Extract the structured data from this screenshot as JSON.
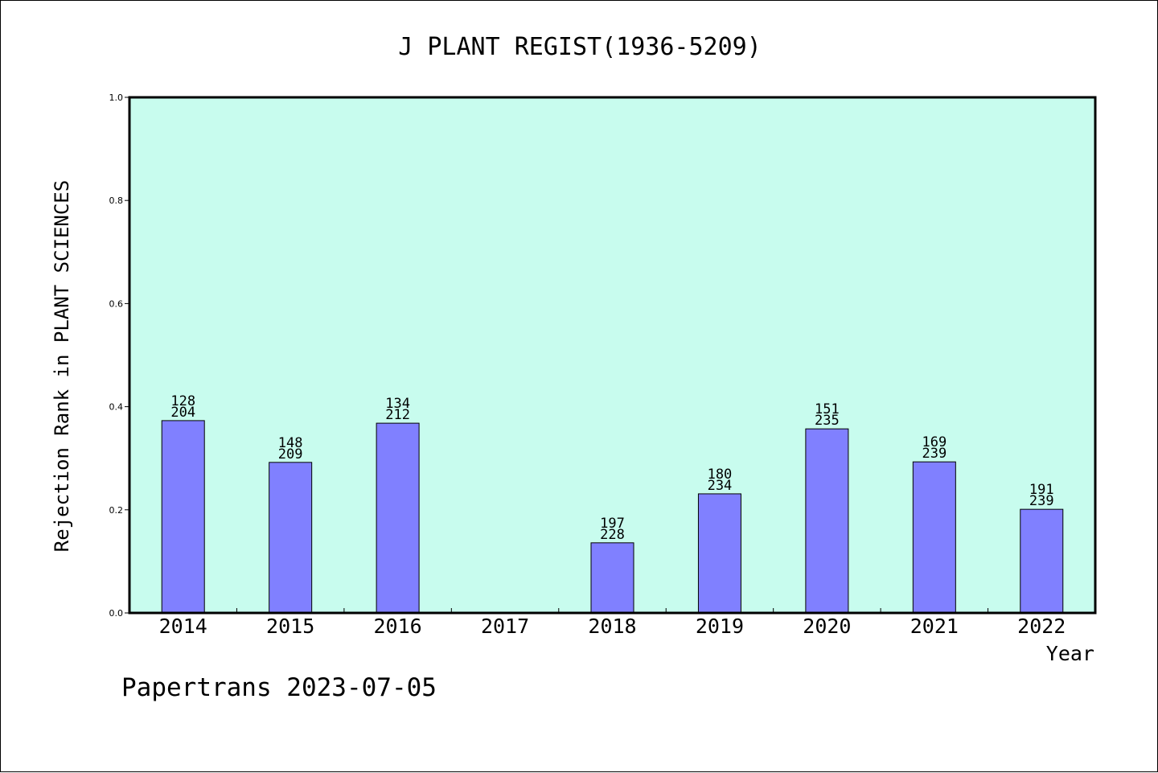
{
  "chart_data": {
    "type": "bar",
    "title": "J PLANT REGIST(1936-5209)",
    "xlabel": "Year",
    "ylabel": "Rejection Rank in PLANT SCIENCES",
    "ylim": [
      0,
      1.0
    ],
    "yticks": [
      "0.0",
      "0.2",
      "0.4",
      "0.6",
      "0.8",
      "1.0"
    ],
    "grid": false,
    "categories": [
      "2014",
      "2015",
      "2016",
      "2017",
      "2018",
      "2019",
      "2020",
      "2021",
      "2022"
    ],
    "values": [
      0.373,
      0.292,
      0.368,
      null,
      0.136,
      0.231,
      0.357,
      0.293,
      0.201
    ],
    "labels_top": [
      "128",
      "148",
      "134",
      "",
      "197",
      "180",
      "151",
      "169",
      "191"
    ],
    "labels_bottom": [
      "204",
      "209",
      "212",
      "",
      "228",
      "234",
      "235",
      "239",
      "239"
    ],
    "colors": {
      "plot_bg": "#c8fcee",
      "bar_fill": "#8080ff",
      "bar_stroke": "#000000"
    }
  },
  "footer": "Papertrans 2023-07-05"
}
